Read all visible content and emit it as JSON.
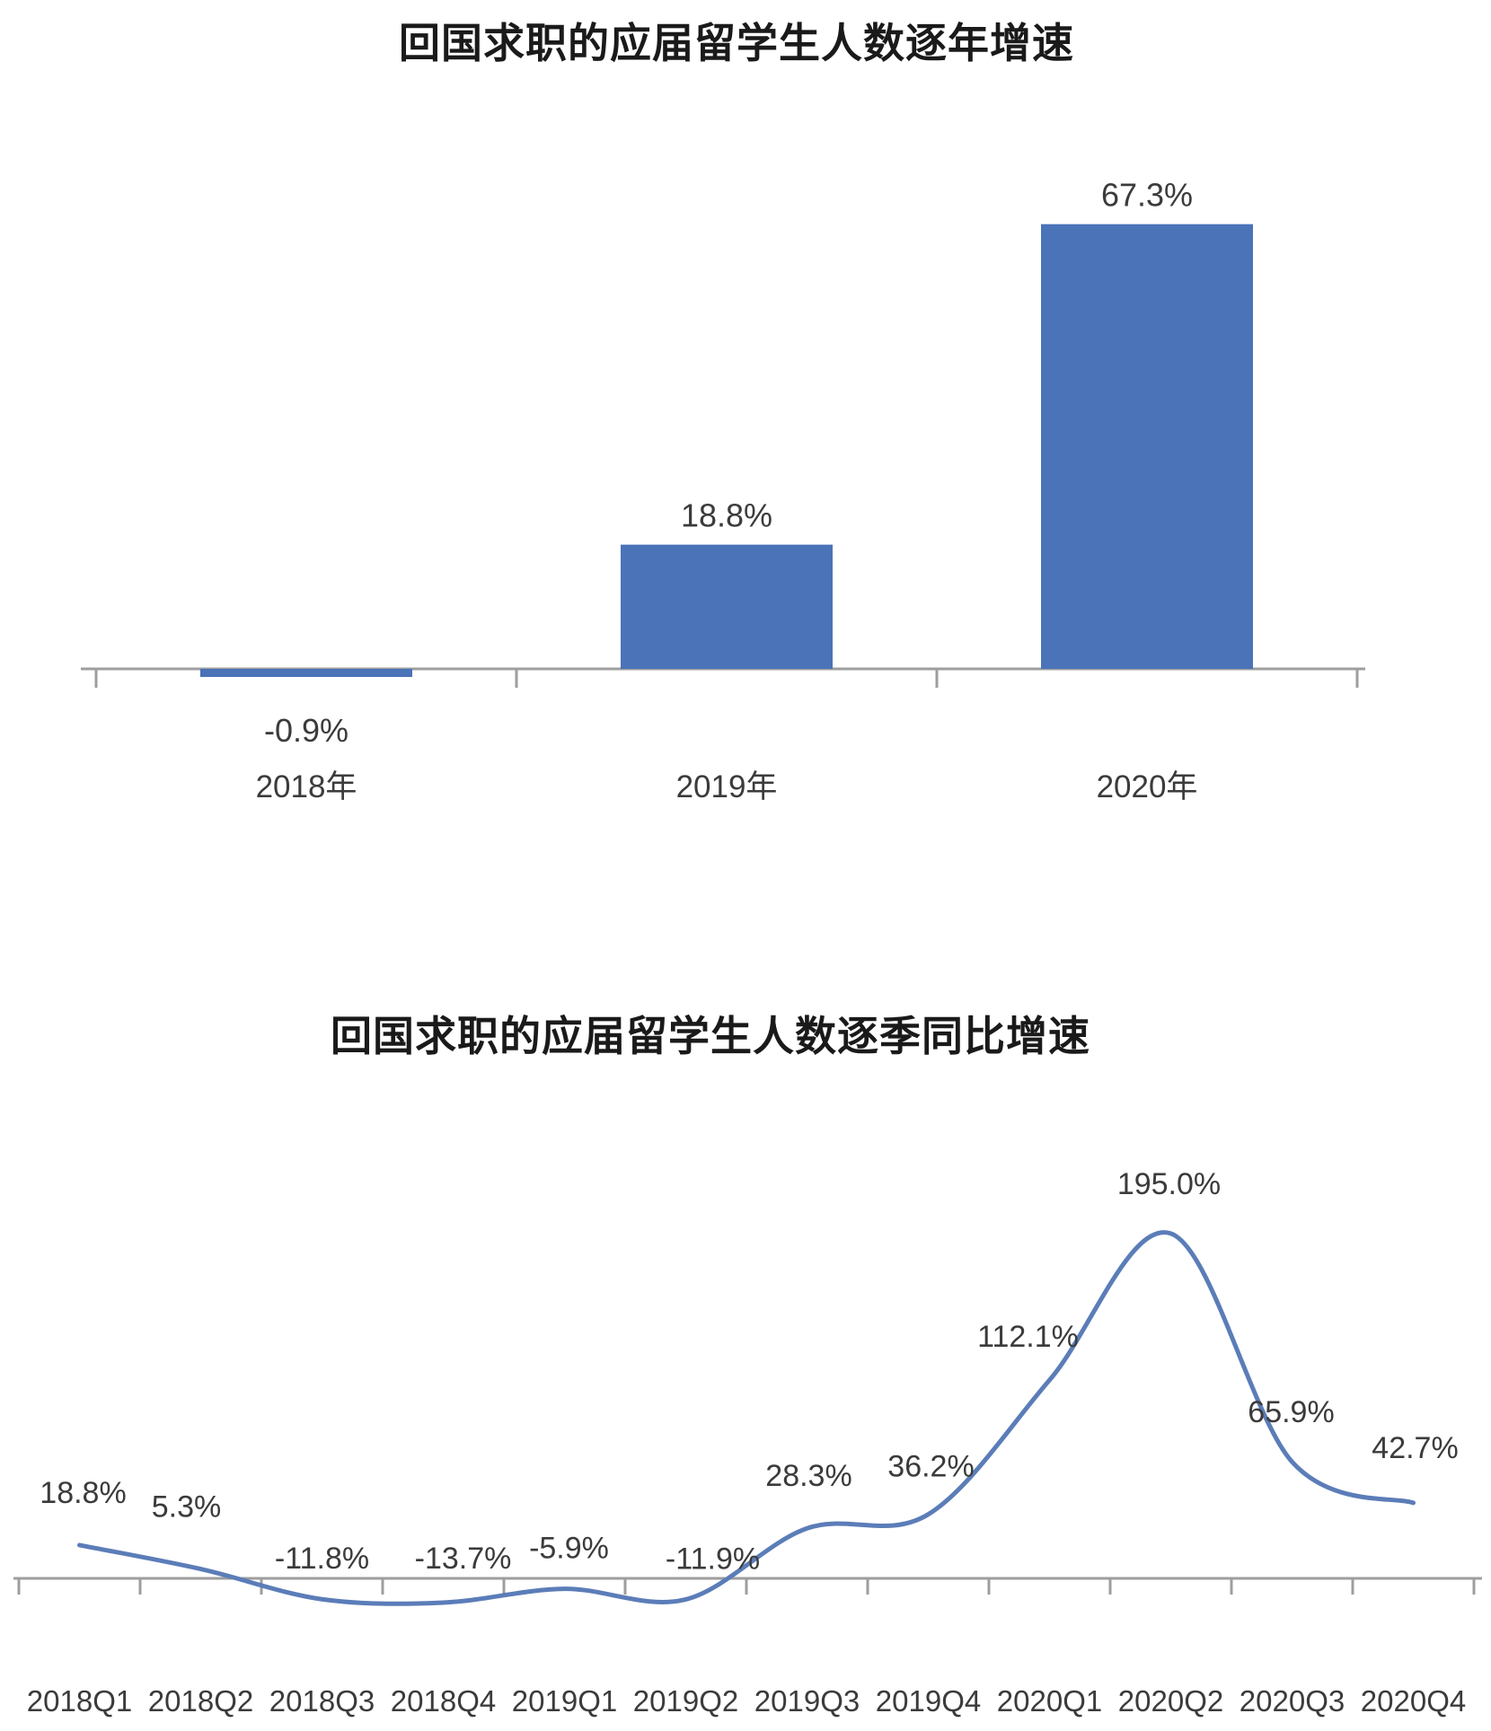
{
  "page": {
    "background_color": "#ffffff"
  },
  "chart_data": [
    {
      "type": "bar",
      "title": "回国求职的应届留学生人数逐年增速",
      "categories": [
        "2018年",
        "2019年",
        "2020年"
      ],
      "values": [
        -0.9,
        18.8,
        67.3
      ],
      "data_labels": [
        "-0.9%",
        "18.8%",
        "67.3%"
      ],
      "unit": "%",
      "xlabel": "",
      "ylabel": "",
      "ylim": [
        -5,
        75
      ],
      "grid": false,
      "y_axis_visible": false,
      "legend": "none",
      "bar_color": "#4a73b8",
      "axis_color": "#9e9e9e",
      "label_color": "#3b3b3b",
      "title_color": "#1a1a1a"
    },
    {
      "type": "line",
      "title": "回国求职的应届留学生人数逐季同比增速",
      "categories": [
        "2018Q1",
        "2018Q2",
        "2018Q3",
        "2018Q4",
        "2019Q1",
        "2019Q2",
        "2019Q3",
        "2019Q4",
        "2020Q1",
        "2020Q2",
        "2020Q3",
        "2020Q4"
      ],
      "values": [
        18.8,
        5.3,
        -11.8,
        -13.7,
        -5.9,
        -11.9,
        28.3,
        36.2,
        112.1,
        195.0,
        65.9,
        42.7
      ],
      "data_labels": [
        "18.8%",
        "5.3%",
        "-11.8%",
        "-13.7%",
        "-5.9%",
        "-11.9%",
        "28.3%",
        "36.2%",
        "112.1%",
        "195.0%",
        "65.9%",
        "42.7%"
      ],
      "unit": "%",
      "xlabel": "",
      "ylabel": "",
      "ylim": [
        -30,
        210
      ],
      "grid": false,
      "y_axis_visible": false,
      "legend": "none",
      "smoothed": true,
      "line_color": "#5b7db8",
      "axis_color": "#9e9e9e",
      "label_color": "#3b3b3b",
      "title_color": "#1a1a1a"
    }
  ]
}
